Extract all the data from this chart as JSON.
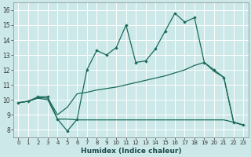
{
  "title": "",
  "xlabel": "Humidex (Indice chaleur)",
  "background_color": "#cce8e8",
  "grid_color": "#aad8d8",
  "line_color": "#1a6b5a",
  "x_values": [
    0,
    1,
    2,
    3,
    4,
    5,
    6,
    7,
    8,
    9,
    10,
    11,
    12,
    13,
    14,
    15,
    16,
    17,
    18,
    19,
    20,
    21,
    22,
    23
  ],
  "line1_y": [
    9.8,
    9.9,
    10.2,
    10.2,
    8.7,
    7.9,
    8.7,
    12.0,
    13.3,
    13.0,
    13.5,
    15.0,
    12.5,
    12.6,
    13.4,
    14.6,
    15.8,
    15.2,
    15.5,
    12.5,
    12.0,
    11.5,
    8.5,
    8.3
  ],
  "line2_y": [
    9.8,
    9.9,
    10.15,
    10.1,
    9.0,
    9.5,
    10.4,
    10.5,
    10.65,
    10.75,
    10.85,
    11.0,
    11.15,
    11.3,
    11.45,
    11.6,
    11.8,
    12.0,
    12.3,
    12.5,
    11.9,
    11.5,
    8.5,
    8.3
  ],
  "line3_y": [
    9.8,
    9.9,
    10.1,
    10.0,
    8.7,
    8.7,
    8.65,
    8.65,
    8.65,
    8.65,
    8.65,
    8.65,
    8.65,
    8.65,
    8.65,
    8.65,
    8.65,
    8.65,
    8.65,
    8.65,
    8.65,
    8.65,
    8.5,
    8.3
  ],
  "ylim": [
    7.5,
    16.5
  ],
  "yticks": [
    8,
    9,
    10,
    11,
    12,
    13,
    14,
    15,
    16
  ],
  "xticks": [
    0,
    1,
    2,
    3,
    4,
    5,
    6,
    7,
    8,
    9,
    10,
    11,
    12,
    13,
    14,
    15,
    16,
    17,
    18,
    19,
    20,
    21,
    22,
    23
  ]
}
